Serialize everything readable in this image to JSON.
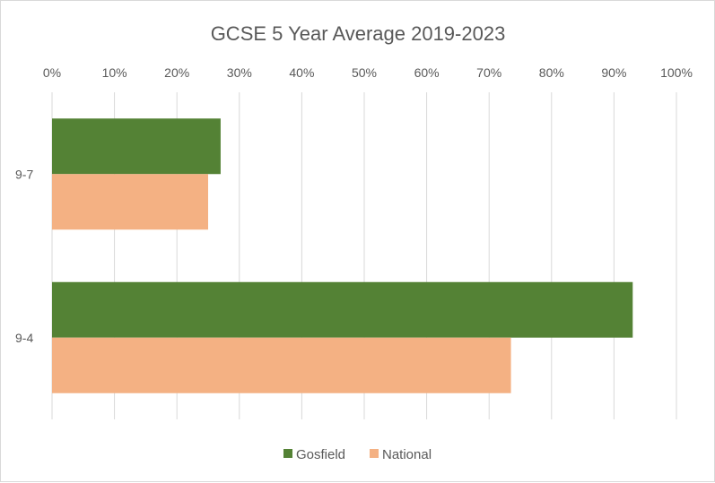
{
  "chart_data": {
    "type": "bar",
    "orientation": "horizontal",
    "title": "GCSE 5 Year Average 2019-2023",
    "xlabel": "",
    "ylabel": "",
    "xlim": [
      0,
      100
    ],
    "x_tick_labels": [
      "0%",
      "10%",
      "20%",
      "30%",
      "40%",
      "50%",
      "60%",
      "70%",
      "80%",
      "90%",
      "100%"
    ],
    "categories": [
      "9-7",
      "9-4"
    ],
    "series": [
      {
        "name": "Gosfield",
        "color": "#548235",
        "values": [
          27,
          93
        ]
      },
      {
        "name": "National",
        "color": "#F4B183",
        "values": [
          25,
          73.5
        ]
      }
    ],
    "grid": true,
    "legend_position": "bottom"
  }
}
